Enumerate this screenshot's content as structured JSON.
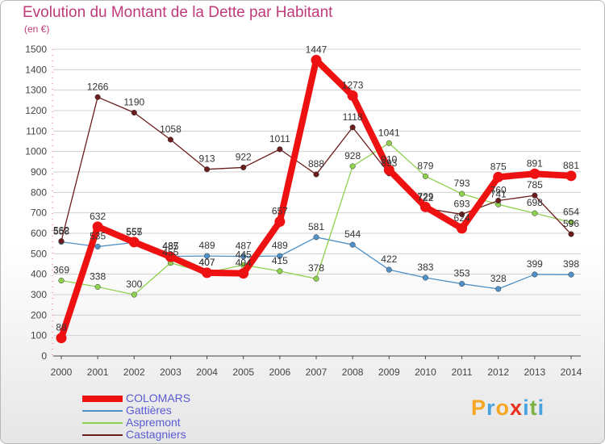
{
  "title": "Evolution du Montant de la Dette par Habitant",
  "unit": "(en €)",
  "logo": {
    "text": "Proxiti",
    "colors": [
      "#f5a623",
      "#4aa3df",
      "#f5a623",
      "#e8331c",
      "#4aa3df",
      "#7cb342",
      "#4aa3df"
    ]
  },
  "chart_data": {
    "type": "line",
    "title": "Evolution du Montant de la Dette par Habitant",
    "ylabel": "(en €)",
    "ylim": [
      0,
      1500
    ],
    "yticks": [
      0,
      100,
      200,
      300,
      400,
      500,
      600,
      700,
      800,
      900,
      1000,
      1100,
      1200,
      1300,
      1400,
      1500
    ],
    "x": [
      2000,
      2001,
      2002,
      2003,
      2004,
      2005,
      2006,
      2007,
      2008,
      2009,
      2010,
      2011,
      2012,
      2013,
      2014
    ],
    "grid": true,
    "legend_position": "bottom-left",
    "series": [
      {
        "name": "COLOMARS",
        "color": "#ee1111",
        "values": [
          88,
          632,
          557,
          485,
          407,
          404,
          657,
          1447,
          1273,
          910,
          729,
          624,
          875,
          891,
          881
        ]
      },
      {
        "name": "Gattières",
        "color": "#4f91c8",
        "values": [
          558,
          535,
          555,
          487,
          489,
          487,
          489,
          581,
          544,
          422,
          383,
          353,
          328,
          399,
          398
        ]
      },
      {
        "name": "Aspremont",
        "color": "#8fd14f",
        "values": [
          369,
          338,
          300,
          455,
          407,
          445,
          415,
          378,
          928,
          1041,
          879,
          793,
          741,
          698,
          654
        ]
      },
      {
        "name": "Castagniers",
        "color": "#6b1c1c",
        "values": [
          562,
          1266,
          1190,
          1058,
          913,
          922,
          1011,
          888,
          1118,
          893,
          722,
          693,
          760,
          785,
          596
        ]
      }
    ],
    "labels": [
      {
        "series": "COLOMARS",
        "text": [
          "88",
          "632",
          "557",
          "485",
          "407",
          "404",
          "657",
          "1447",
          "1273",
          "910",
          "729",
          "624",
          "875",
          "891",
          "881"
        ]
      },
      {
        "series": "Gattières",
        "text": [
          "558",
          "535",
          "555",
          "487",
          "489",
          "487",
          "489",
          "581",
          "544",
          "422",
          "383",
          "353",
          "328",
          "399",
          "398"
        ]
      },
      {
        "series": "Aspremont",
        "text": [
          "369",
          "338",
          "300",
          "455",
          "407",
          "445",
          "415",
          "378",
          "928",
          "1041",
          "879",
          "793",
          "741",
          "698",
          "654"
        ]
      },
      {
        "series": "Castagniers",
        "text": [
          "562",
          "1266",
          "1190",
          "1058",
          "913",
          "922",
          "1011",
          "888",
          "1118",
          "893",
          "722",
          "693",
          "760",
          "785",
          "596"
        ]
      }
    ]
  }
}
